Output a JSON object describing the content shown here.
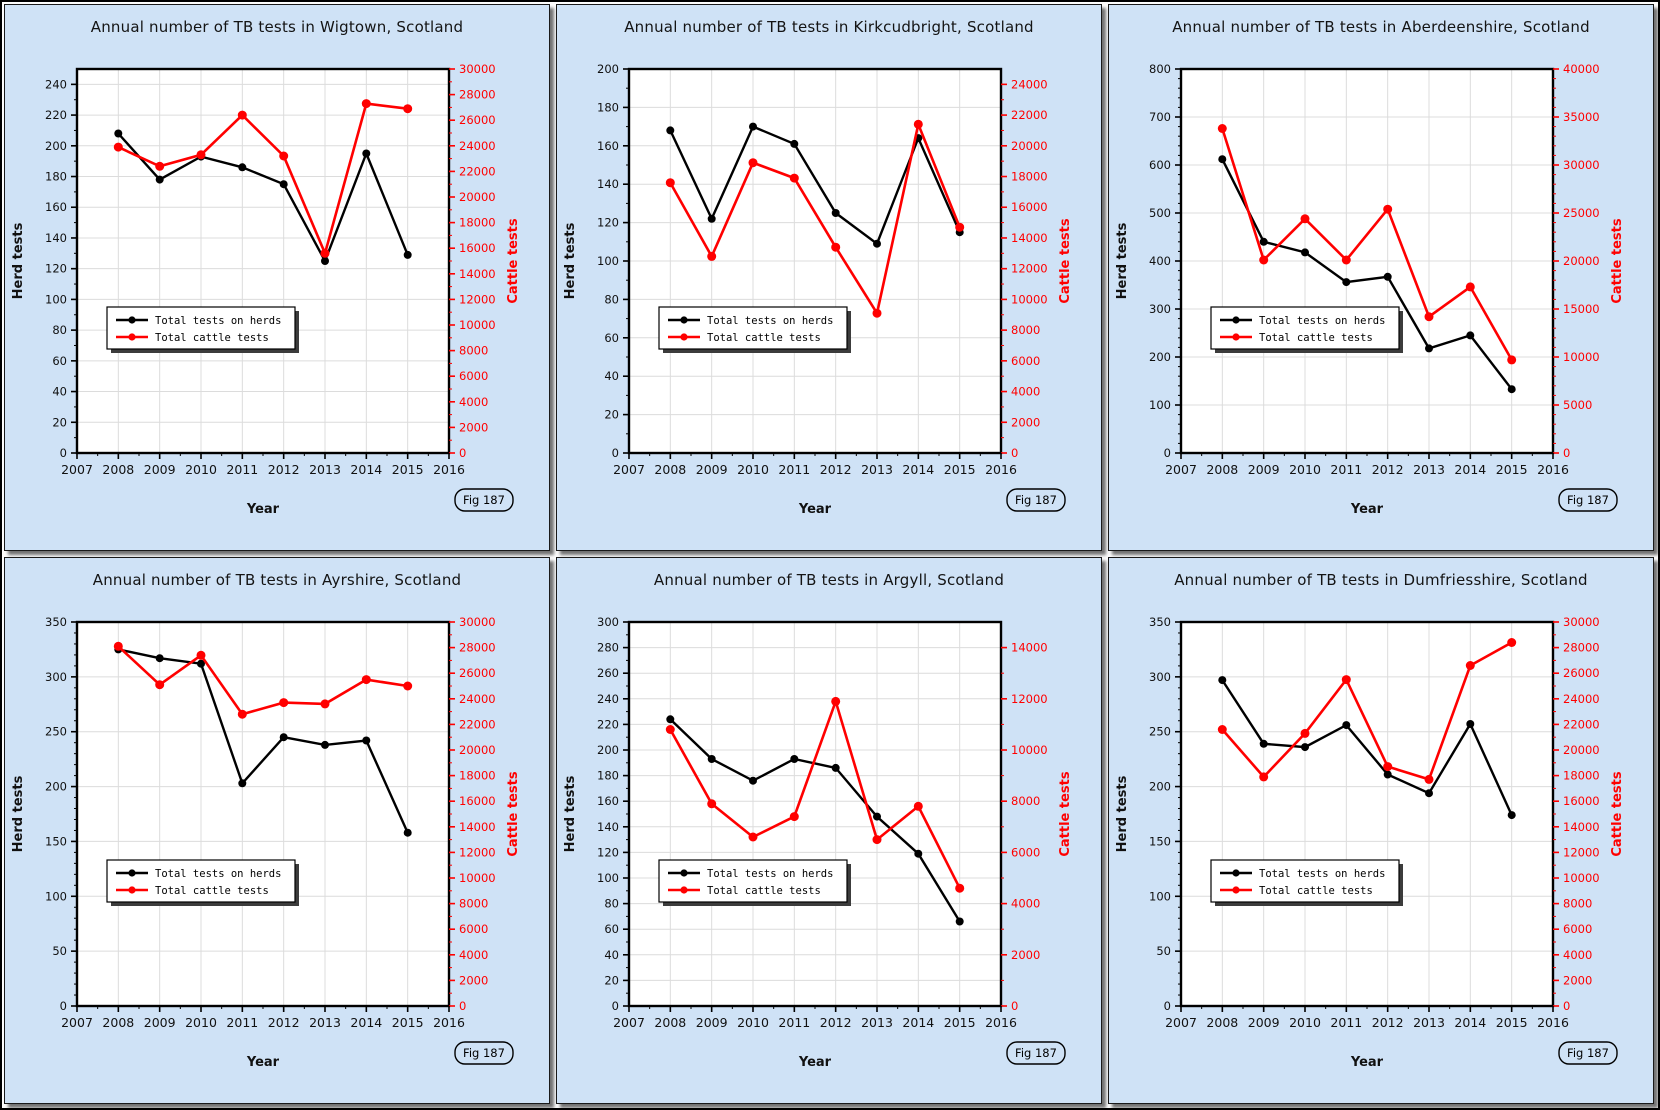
{
  "figure_label": "Fig 187",
  "xlabel": "Year",
  "ylabel_left": "Herd tests",
  "ylabel_right": "Cattle tests",
  "x_axis": {
    "min": 2007,
    "max": 2016,
    "tick_step": 1,
    "minor_step": 0.5
  },
  "legend": {
    "entries": [
      {
        "label": "Total tests on herds",
        "color": "#000000"
      },
      {
        "label": "Total cattle tests",
        "color": "#ff0000"
      }
    ],
    "position": "inside-left-lower"
  },
  "colors": {
    "panel_background": "#cfe2f6",
    "plot_background": "#ffffff",
    "grid": "#dcdcdc",
    "axis": "#000000",
    "herd_series": "#000000",
    "cattle_series": "#ff0000",
    "title_text": "#141414"
  },
  "chart_data": [
    {
      "type": "line",
      "title": "Annual number of TB tests in Wigtown, Scotland",
      "region": "Wigtown",
      "x": [
        2008,
        2009,
        2010,
        2011,
        2012,
        2013,
        2014,
        2015
      ],
      "series": [
        {
          "name": "Total tests on herds",
          "axis": "left",
          "color": "#000000",
          "values": [
            208,
            178,
            193,
            186,
            175,
            125,
            195,
            129
          ]
        },
        {
          "name": "Total cattle tests",
          "axis": "right",
          "color": "#ff0000",
          "values": [
            23900,
            22400,
            23300,
            26400,
            23200,
            15600,
            27300,
            26900
          ]
        }
      ],
      "left_axis": {
        "max": 250,
        "tick_step": 20,
        "tick_max": 240,
        "minor_step": 10
      },
      "right_axis": {
        "max": 30000,
        "tick_step": 2000,
        "tick_max": 30000,
        "minor_step": 1000
      }
    },
    {
      "type": "line",
      "title": "Annual number of TB tests in Kirkcudbright, Scotland",
      "region": "Kirkcudbright",
      "x": [
        2008,
        2009,
        2010,
        2011,
        2012,
        2013,
        2014,
        2015
      ],
      "series": [
        {
          "name": "Total tests on herds",
          "axis": "left",
          "color": "#000000",
          "values": [
            168,
            122,
            170,
            161,
            125,
            109,
            164,
            115
          ]
        },
        {
          "name": "Total cattle tests",
          "axis": "right",
          "color": "#ff0000",
          "values": [
            17600,
            12800,
            18900,
            17900,
            13400,
            9100,
            21400,
            14700
          ]
        }
      ],
      "left_axis": {
        "max": 200,
        "tick_step": 20,
        "tick_max": 200,
        "minor_step": 10
      },
      "right_axis": {
        "max": 25000,
        "tick_step": 2000,
        "tick_max": 24000,
        "minor_step": 1000
      }
    },
    {
      "type": "line",
      "title": "Annual number of TB tests in Aberdeenshire, Scotland",
      "region": "Aberdeenshire",
      "x": [
        2008,
        2009,
        2010,
        2011,
        2012,
        2013,
        2014,
        2015
      ],
      "series": [
        {
          "name": "Total tests on herds",
          "axis": "left",
          "color": "#000000",
          "values": [
            612,
            440,
            418,
            356,
            367,
            218,
            245,
            133
          ]
        },
        {
          "name": "Total cattle tests",
          "axis": "right",
          "color": "#ff0000",
          "values": [
            33800,
            20100,
            24400,
            20100,
            25400,
            14200,
            17300,
            9700
          ]
        }
      ],
      "left_axis": {
        "max": 800,
        "tick_step": 100,
        "tick_max": 800,
        "minor_step": 20
      },
      "right_axis": {
        "max": 40000,
        "tick_step": 5000,
        "tick_max": 40000,
        "minor_step": 1000
      }
    },
    {
      "type": "line",
      "title": "Annual number of TB tests in Ayrshire, Scotland",
      "region": "Ayrshire",
      "x": [
        2008,
        2009,
        2010,
        2011,
        2012,
        2013,
        2014,
        2015
      ],
      "series": [
        {
          "name": "Total tests on herds",
          "axis": "left",
          "color": "#000000",
          "values": [
            325,
            317,
            312,
            203,
            245,
            238,
            242,
            158
          ]
        },
        {
          "name": "Total cattle tests",
          "axis": "right",
          "color": "#ff0000",
          "values": [
            28100,
            25100,
            27400,
            22800,
            23700,
            23600,
            25500,
            25000
          ]
        }
      ],
      "left_axis": {
        "max": 350,
        "tick_step": 50,
        "tick_max": 350,
        "minor_step": 10
      },
      "right_axis": {
        "max": 30000,
        "tick_step": 2000,
        "tick_max": 30000,
        "minor_step": 1000
      }
    },
    {
      "type": "line",
      "title": "Annual number of TB tests in Argyll, Scotland",
      "region": "Argyll",
      "x": [
        2008,
        2009,
        2010,
        2011,
        2012,
        2013,
        2014,
        2015
      ],
      "series": [
        {
          "name": "Total tests on herds",
          "axis": "left",
          "color": "#000000",
          "values": [
            224,
            193,
            176,
            193,
            186,
            148,
            119,
            66
          ]
        },
        {
          "name": "Total cattle tests",
          "axis": "right",
          "color": "#ff0000",
          "values": [
            10800,
            7900,
            6600,
            7400,
            11900,
            6500,
            7800,
            4600
          ]
        }
      ],
      "left_axis": {
        "max": 300,
        "tick_step": 20,
        "tick_max": 300,
        "minor_step": 10
      },
      "right_axis": {
        "max": 15000,
        "tick_step": 2000,
        "tick_max": 14000,
        "minor_step": 1000
      }
    },
    {
      "type": "line",
      "title": "Annual number of TB tests in Dumfriesshire, Scotland",
      "region": "Dumfriesshire",
      "x": [
        2008,
        2009,
        2010,
        2011,
        2012,
        2013,
        2014,
        2015
      ],
      "series": [
        {
          "name": "Total tests on herds",
          "axis": "left",
          "color": "#000000",
          "values": [
            297,
            239,
            236,
            256,
            211,
            194,
            257,
            174
          ]
        },
        {
          "name": "Total cattle tests",
          "axis": "right",
          "color": "#ff0000",
          "values": [
            21600,
            17900,
            21300,
            25500,
            18700,
            17700,
            26600,
            28400
          ]
        }
      ],
      "left_axis": {
        "max": 350,
        "tick_step": 50,
        "tick_max": 350,
        "minor_step": 10
      },
      "right_axis": {
        "max": 30000,
        "tick_step": 2000,
        "tick_max": 30000,
        "minor_step": 1000
      }
    }
  ]
}
